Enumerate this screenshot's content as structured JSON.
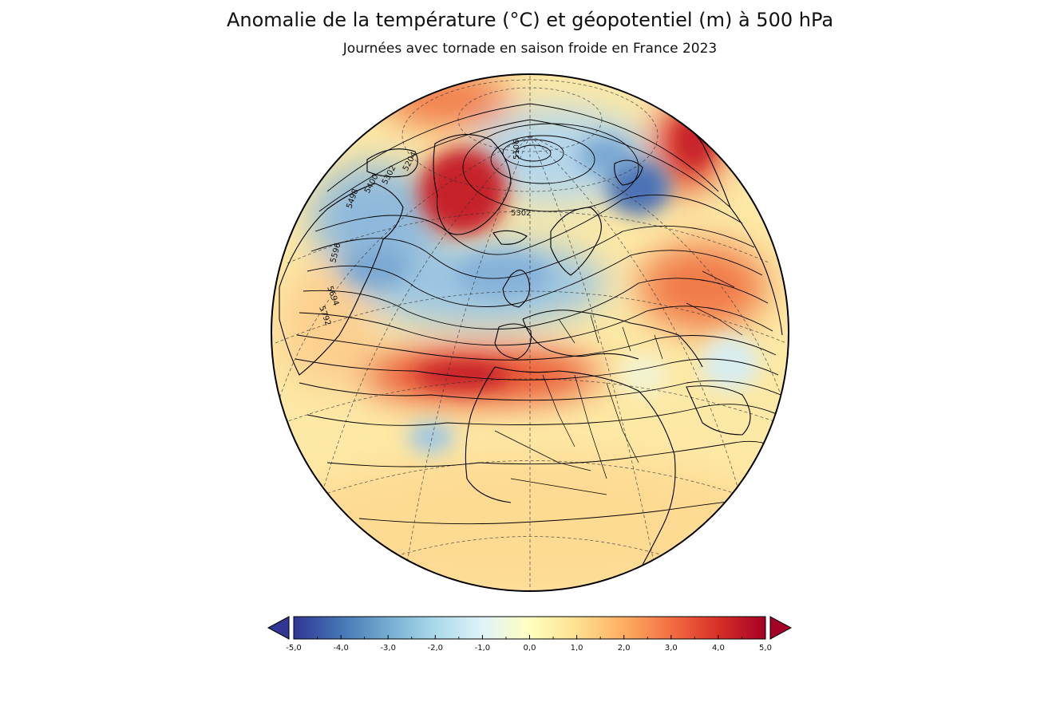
{
  "title": "Anomalie de la température (°C) et géopotentiel (m) à 500 hPa",
  "subtitle": "Journées avec tornade en saison froide en France 2023",
  "map": {
    "projection": "orthographic",
    "region": "North Atlantic, Europe, North Africa",
    "anomaly_fields": [
      {
        "name": "greenland-warm-anomaly",
        "value": 5.0
      },
      {
        "name": "north-pacific-warm-anomaly",
        "value": 3.5
      },
      {
        "name": "siberia-warm-anomaly",
        "value": 4.0
      },
      {
        "name": "russia-caspian-warm-anomaly",
        "value": 3.5
      },
      {
        "name": "subtropical-atlantic-warm-band",
        "value": 4.5
      },
      {
        "name": "north-atlantic-cold-trough",
        "value": -2.5
      },
      {
        "name": "canada-labrador-cold-anomaly",
        "value": -2.5
      },
      {
        "name": "arctic-cold-anomaly",
        "value": -2.0
      },
      {
        "name": "barents-kara-cold-anomaly",
        "value": -4.0
      },
      {
        "name": "tropical-atlantic-cold-spot",
        "value": -2.0
      },
      {
        "name": "middle-east-cool-spot",
        "value": -1.0
      }
    ],
    "contour_labels": [
      "5400",
      "5302",
      "5302",
      "5498",
      "5596",
      "5694",
      "5792",
      "5106",
      "5204"
    ]
  },
  "colorbar": {
    "min": -5.0,
    "max": 5.0,
    "extend": "both",
    "ticks": [
      "-5,0",
      "-4,0",
      "-3,0",
      "-2,0",
      "-1,0",
      "0,0",
      "1,0",
      "2,0",
      "3,0",
      "4,0",
      "5,0"
    ],
    "colors": [
      "#313695",
      "#4575b4",
      "#74add1",
      "#abd9e9",
      "#e0f3f8",
      "#ffffbf",
      "#fee090",
      "#fdae61",
      "#f46d43",
      "#d73027",
      "#a50026"
    ]
  }
}
